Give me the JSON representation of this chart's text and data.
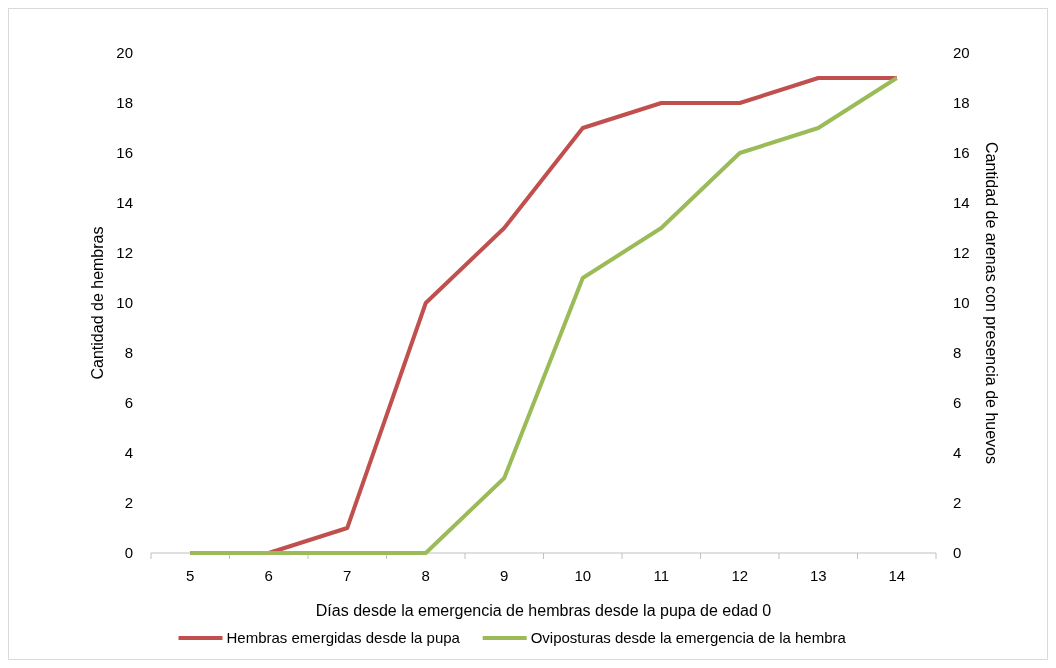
{
  "chart_data": {
    "type": "line",
    "xlabel": "Días desde la emergencia de hembras desde la pupa de edad 0",
    "ylabel": "Cantidad de hembras",
    "y2label": "Cantidad de arenas con presencia de huevos",
    "categories": [
      "5",
      "6",
      "7",
      "8",
      "9",
      "10",
      "11",
      "12",
      "13",
      "14"
    ],
    "series": [
      {
        "name": "Hembras emergidas desde la pupa",
        "color": "#c0504d",
        "values": [
          0,
          0,
          1,
          10,
          13,
          17,
          18,
          18,
          19,
          19
        ]
      },
      {
        "name": "Oviposturas desde la emergencia de la hembra",
        "color": "#9bbb59",
        "axis": "y2",
        "values": [
          0,
          0,
          0,
          0,
          3,
          11,
          13,
          16,
          17,
          19
        ]
      }
    ],
    "ylim": [
      0,
      20
    ],
    "yticks": [
      0,
      2,
      4,
      6,
      8,
      10,
      12,
      14,
      16,
      18,
      20
    ],
    "y2lim": [
      0,
      20
    ],
    "y2ticks": [
      0,
      2,
      4,
      6,
      8,
      10,
      12,
      14,
      16,
      18,
      20
    ],
    "grid": false,
    "legend": "bottom",
    "marker": "none",
    "line_style": "solid"
  }
}
